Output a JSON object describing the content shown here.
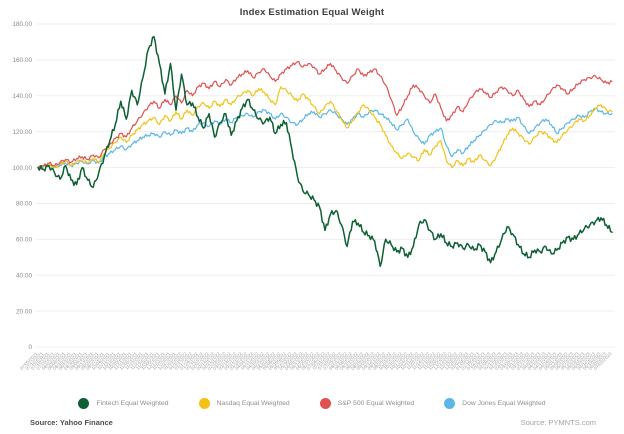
{
  "title": "Index Estimation Equal Weight",
  "footer": {
    "source_left": "Source: Yahoo Finance",
    "source_right": "Source: PYMNTS.com"
  },
  "colors": {
    "fintech": "#0e6034",
    "nasdaq": "#f3c118",
    "sp500": "#e05151",
    "dowjones": "#5cb7e6",
    "grid": "#efefef",
    "axis_text": "#8b8b8b",
    "x_label_text": "#a0a0a0",
    "title_text": "#3f3f3f"
  },
  "chart_data": {
    "type": "line",
    "title": "Index Estimation Equal Weight",
    "xlabel": "",
    "ylabel": "",
    "ylim": [
      0,
      180
    ],
    "yticks": [
      0,
      20,
      40,
      60,
      80,
      100,
      120,
      140,
      160,
      180
    ],
    "grid": true,
    "legend_position": "bottom",
    "x": [
      "07/05/2021",
      "07/12/2021",
      "07/19/2021",
      "07/26/2021",
      "08/02/2021",
      "08/09/2021",
      "08/16/2021",
      "08/23/2021",
      "08/30/2021",
      "09/06/2021",
      "09/13/2021",
      "09/20/2021",
      "09/27/2021",
      "10/04/2021",
      "10/11/2021",
      "10/18/2021",
      "10/25/2021",
      "11/01/2021",
      "11/08/2021",
      "11/15/2021",
      "11/22/2021",
      "11/29/2021",
      "12/06/2021",
      "12/13/2021",
      "12/20/2021",
      "12/27/2021",
      "01/03/2022",
      "01/10/2022",
      "01/17/2022",
      "01/24/2022",
      "01/31/2022",
      "02/07/2022",
      "02/14/2022",
      "02/21/2022",
      "02/28/2022",
      "03/07/2022",
      "03/14/2022",
      "03/21/2022",
      "03/28/2022",
      "04/04/2022",
      "04/11/2022",
      "04/18/2022",
      "04/25/2022",
      "05/02/2022",
      "05/09/2022",
      "05/16/2022",
      "05/23/2022",
      "05/30/2022",
      "06/06/2022",
      "06/13/2022",
      "06/20/2022",
      "06/27/2022",
      "07/04/2022",
      "07/11/2022",
      "07/18/2022",
      "07/25/2022",
      "08/01/2022",
      "08/08/2022",
      "08/15/2022",
      "08/22/2022",
      "08/29/2022",
      "09/05/2022",
      "09/12/2022",
      "09/19/2022",
      "09/26/2022",
      "10/03/2022",
      "10/10/2022",
      "10/17/2022",
      "10/24/2022",
      "10/31/2022",
      "11/07/2022",
      "11/14/2022",
      "11/21/2022",
      "11/28/2022",
      "12/05/2022",
      "12/12/2022",
      "12/19/2022",
      "12/26/2022",
      "01/02/2023",
      "01/09/2023",
      "01/16/2023",
      "01/23/2023",
      "01/30/2023",
      "02/06/2023",
      "02/13/2023",
      "02/20/2023",
      "02/27/2023",
      "03/06/2023",
      "03/13/2023",
      "03/20/2023",
      "03/27/2023",
      "04/03/2023",
      "04/10/2023",
      "04/17/2023",
      "04/24/2023",
      "05/01/2023",
      "05/08/2023",
      "05/15/2023",
      "05/22/2023",
      "05/29/2023",
      "06/05/2023",
      "06/12/2023",
      "06/19/2023",
      "06/26/2023",
      "07/03/2023"
    ],
    "series": [
      {
        "name": "Fintech Equal Weighted",
        "color": "#0e6034",
        "values": [
          100,
          99,
          101,
          97,
          93.5,
          101,
          93,
          90.5,
          100,
          93,
          89,
          97,
          106,
          115,
          124,
          137,
          127,
          143,
          135,
          150,
          166,
          173,
          158,
          141,
          158,
          132,
          152,
          135,
          136,
          128,
          122,
          130,
          117,
          125,
          130,
          118,
          126,
          133,
          138,
          132,
          127,
          125,
          128,
          119,
          124,
          125,
          110,
          95,
          87,
          85,
          82,
          78,
          65,
          74,
          76,
          68,
          56,
          70,
          69,
          64,
          62,
          59,
          45,
          60,
          57,
          53,
          55,
          50,
          56,
          68,
          71,
          65,
          60,
          63,
          58,
          56,
          58,
          55,
          57,
          54,
          57,
          53,
          47,
          53,
          60,
          67,
          63,
          57,
          52,
          50,
          54,
          53,
          56,
          52,
          54,
          58,
          61,
          60,
          63,
          66,
          68,
          70,
          72,
          68,
          64
        ]
      },
      {
        "name": "Nasdaq Equal Weighted",
        "color": "#f3c118",
        "values": [
          100,
          100.5,
          102,
          100,
          102,
          103.5,
          101,
          103,
          104.5,
          102.5,
          105,
          103,
          108,
          111,
          114,
          117,
          114,
          118,
          121,
          124,
          126,
          128,
          124,
          129,
          126,
          131,
          127,
          132,
          129,
          134,
          136,
          133,
          137,
          134,
          138,
          135,
          139,
          141,
          143,
          140,
          144,
          142,
          138,
          135,
          145,
          143,
          140,
          137,
          141,
          138,
          134,
          130,
          134,
          137,
          132,
          127,
          122,
          126,
          131,
          135,
          132,
          128,
          124,
          118,
          112,
          108,
          105,
          108,
          106,
          104,
          110,
          107,
          112,
          115,
          104,
          100,
          104,
          101,
          105,
          103,
          107,
          104,
          101,
          106,
          112,
          118,
          122,
          119,
          116,
          113,
          117,
          120,
          119,
          116,
          114,
          118,
          121,
          124,
          127,
          126,
          129,
          133,
          135,
          132,
          131
        ]
      },
      {
        "name": "S&P 500 Equal Weighted",
        "color": "#e05151",
        "values": [
          100,
          101,
          102.5,
          101,
          103,
          104.5,
          103,
          105,
          106,
          104.5,
          107,
          105.5,
          110,
          113,
          116,
          119,
          117,
          122,
          126,
          130,
          134,
          137,
          133,
          138,
          135,
          140,
          136,
          143,
          140,
          145,
          147,
          144,
          148,
          145,
          149,
          146,
          150,
          152,
          154,
          150,
          153,
          155,
          151,
          148,
          152,
          155,
          157,
          159,
          156,
          158,
          156,
          152,
          155,
          158,
          154,
          150,
          147,
          151,
          155,
          151,
          153,
          155,
          151,
          146,
          138,
          129,
          134,
          140,
          146,
          144,
          140,
          136,
          141,
          133,
          126,
          129,
          134,
          131,
          137,
          141,
          144,
          142,
          139,
          142,
          145,
          143,
          140,
          143,
          138,
          134,
          137,
          135,
          139,
          143,
          146,
          144,
          141,
          144,
          147,
          149,
          150,
          151,
          149,
          147,
          148
        ]
      },
      {
        "name": "Dow Jones Equal Weighted",
        "color": "#5cb7e6",
        "values": [
          100,
          100.5,
          101.5,
          100,
          101.5,
          102.5,
          101,
          102.5,
          103.5,
          102,
          104,
          102.5,
          106,
          108,
          110,
          112,
          110,
          113,
          115,
          117,
          118,
          119,
          117,
          120,
          118,
          121,
          119,
          122,
          120,
          124,
          125,
          123,
          126,
          124,
          127,
          125,
          128,
          129,
          130,
          128,
          131,
          132,
          130,
          127,
          130,
          128,
          125,
          124,
          127,
          130,
          131,
          128,
          130,
          132,
          130,
          127,
          124,
          127,
          130,
          128,
          131,
          132,
          130,
          128,
          125,
          121,
          124,
          127,
          120,
          116,
          113,
          118,
          120,
          122,
          112,
          106,
          110,
          108,
          112,
          115,
          118,
          121,
          124,
          126,
          125,
          127,
          126,
          128,
          123,
          119,
          122,
          125,
          127,
          124,
          119,
          122,
          125,
          127,
          129,
          128,
          131,
          133,
          131,
          130,
          130
        ]
      }
    ]
  }
}
